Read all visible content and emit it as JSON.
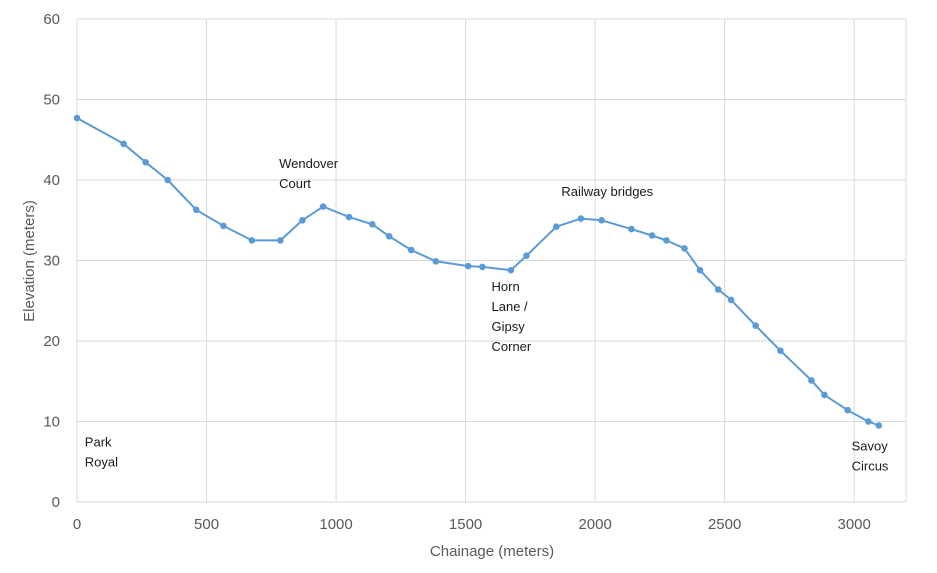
{
  "chart_data": {
    "type": "line",
    "title": "",
    "xlabel": "Chainage (meters)",
    "ylabel": "Elevation (meters)",
    "xlim": [
      0,
      3200
    ],
    "ylim": [
      0,
      60
    ],
    "x_ticks": [
      0,
      500,
      1000,
      1500,
      2000,
      2500,
      3000
    ],
    "y_ticks": [
      0,
      10,
      20,
      30,
      40,
      50,
      60
    ],
    "grid": true,
    "line_color": "#5b9bd5",
    "grid_color": "#d9d9d9",
    "series": [
      {
        "points": [
          [
            0,
            47.7
          ],
          [
            180,
            44.5
          ],
          [
            265,
            42.2
          ],
          [
            350,
            40.0
          ],
          [
            460,
            36.3
          ],
          [
            565,
            34.3
          ],
          [
            675,
            32.5
          ],
          [
            785,
            32.5
          ],
          [
            870,
            35.0
          ],
          [
            950,
            36.7
          ],
          [
            1050,
            35.4
          ],
          [
            1140,
            34.5
          ],
          [
            1205,
            33.0
          ],
          [
            1290,
            31.3
          ],
          [
            1385,
            29.9
          ],
          [
            1510,
            29.3
          ],
          [
            1565,
            29.2
          ],
          [
            1675,
            28.8
          ],
          [
            1735,
            30.6
          ],
          [
            1850,
            34.2
          ],
          [
            1945,
            35.2
          ],
          [
            2025,
            35.0
          ],
          [
            2140,
            33.9
          ],
          [
            2220,
            33.1
          ],
          [
            2275,
            32.5
          ],
          [
            2345,
            31.5
          ],
          [
            2405,
            28.8
          ],
          [
            2475,
            26.4
          ],
          [
            2525,
            25.1
          ],
          [
            2620,
            21.9
          ],
          [
            2715,
            18.8
          ],
          [
            2835,
            15.1
          ],
          [
            2885,
            13.3
          ],
          [
            2975,
            11.4
          ],
          [
            3055,
            10.0
          ],
          [
            3095,
            9.5
          ]
        ]
      }
    ],
    "annotations": [
      {
        "lines": [
          "Park",
          "Royal"
        ],
        "x": 30,
        "y": 6.9
      },
      {
        "lines": [
          "Wendover",
          "Court"
        ],
        "x": 780,
        "y": 41.5
      },
      {
        "lines": [
          "Horn",
          "Lane /",
          "Gipsy",
          "Corner"
        ],
        "x": 1600,
        "y": 26.2
      },
      {
        "lines": [
          "Railway bridges"
        ],
        "x": 1870,
        "y": 38.0
      },
      {
        "lines": [
          "Savoy",
          "Circus"
        ],
        "x": 2990,
        "y": 6.4
      }
    ]
  }
}
